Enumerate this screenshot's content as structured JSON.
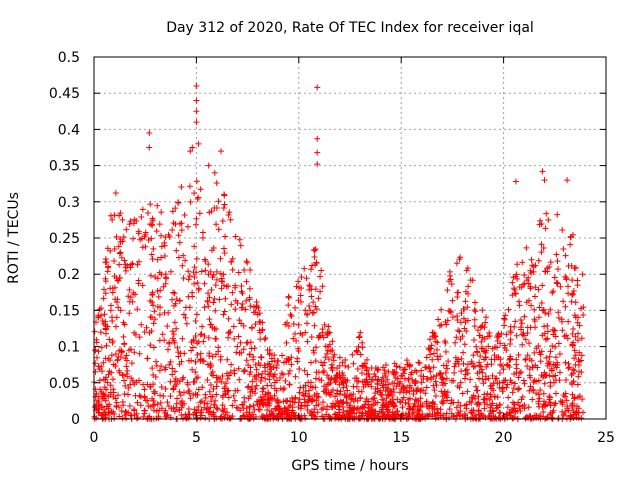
{
  "chart_data": {
    "type": "scatter",
    "title": "Day 312 of 2020, Rate Of TEC Index for receiver iqal",
    "xlabel": "GPS time / hours",
    "ylabel": "ROTI / TECUs",
    "xlim": [
      0,
      25
    ],
    "ylim": [
      0,
      0.5
    ],
    "grid": true,
    "x_ticks": [
      0,
      5,
      10,
      15,
      20,
      25
    ],
    "x_tick_labels": [
      "0",
      "5",
      "10",
      "15",
      "20",
      "25"
    ],
    "y_ticks": [
      0,
      0.05,
      0.1,
      0.15,
      0.2,
      0.25,
      0.3,
      0.35,
      0.4,
      0.45,
      0.5
    ],
    "y_tick_labels": [
      "0",
      "0.05",
      "0.1",
      "0.15",
      "0.2",
      "0.25",
      "0.3",
      "0.35",
      "0.4",
      "0.45",
      "0.5"
    ],
    "marker": "+",
    "series": [
      {
        "name": "ROTI",
        "color": "#ff0000",
        "envelope": [
          {
            "x": 0.0,
            "y": 0.12
          },
          {
            "x": 0.5,
            "y": 0.21
          },
          {
            "x": 1.0,
            "y": 0.32
          },
          {
            "x": 1.5,
            "y": 0.27
          },
          {
            "x": 2.0,
            "y": 0.3
          },
          {
            "x": 2.5,
            "y": 0.33
          },
          {
            "x": 3.0,
            "y": 0.31
          },
          {
            "x": 3.5,
            "y": 0.27
          },
          {
            "x": 4.0,
            "y": 0.31
          },
          {
            "x": 4.5,
            "y": 0.33
          },
          {
            "x": 5.0,
            "y": 0.34
          },
          {
            "x": 5.5,
            "y": 0.3
          },
          {
            "x": 6.0,
            "y": 0.33
          },
          {
            "x": 6.5,
            "y": 0.31
          },
          {
            "x": 7.0,
            "y": 0.25
          },
          {
            "x": 7.5,
            "y": 0.24
          },
          {
            "x": 8.0,
            "y": 0.16
          },
          {
            "x": 8.5,
            "y": 0.1
          },
          {
            "x": 9.0,
            "y": 0.09
          },
          {
            "x": 9.5,
            "y": 0.17
          },
          {
            "x": 10.0,
            "y": 0.2
          },
          {
            "x": 10.5,
            "y": 0.23
          },
          {
            "x": 11.0,
            "y": 0.25
          },
          {
            "x": 11.5,
            "y": 0.12
          },
          {
            "x": 12.0,
            "y": 0.09
          },
          {
            "x": 12.5,
            "y": 0.08
          },
          {
            "x": 13.0,
            "y": 0.12
          },
          {
            "x": 13.5,
            "y": 0.07
          },
          {
            "x": 14.0,
            "y": 0.08
          },
          {
            "x": 14.5,
            "y": 0.07
          },
          {
            "x": 15.0,
            "y": 0.09
          },
          {
            "x": 15.5,
            "y": 0.08
          },
          {
            "x": 16.0,
            "y": 0.08
          },
          {
            "x": 16.5,
            "y": 0.12
          },
          {
            "x": 17.0,
            "y": 0.17
          },
          {
            "x": 17.5,
            "y": 0.22
          },
          {
            "x": 18.0,
            "y": 0.24
          },
          {
            "x": 18.5,
            "y": 0.2
          },
          {
            "x": 19.0,
            "y": 0.16
          },
          {
            "x": 19.5,
            "y": 0.1
          },
          {
            "x": 20.0,
            "y": 0.14
          },
          {
            "x": 20.5,
            "y": 0.2
          },
          {
            "x": 21.0,
            "y": 0.25
          },
          {
            "x": 21.5,
            "y": 0.27
          },
          {
            "x": 22.0,
            "y": 0.29
          },
          {
            "x": 22.5,
            "y": 0.29
          },
          {
            "x": 23.0,
            "y": 0.27
          },
          {
            "x": 23.5,
            "y": 0.25
          },
          {
            "x": 23.9,
            "y": 0.2
          }
        ],
        "peaks": [
          {
            "x": 2.7,
            "y": 0.395
          },
          {
            "x": 2.7,
            "y": 0.375
          },
          {
            "x": 4.7,
            "y": 0.37
          },
          {
            "x": 4.8,
            "y": 0.375
          },
          {
            "x": 5.0,
            "y": 0.46
          },
          {
            "x": 5.0,
            "y": 0.44
          },
          {
            "x": 5.0,
            "y": 0.425
          },
          {
            "x": 5.0,
            "y": 0.41
          },
          {
            "x": 5.1,
            "y": 0.38
          },
          {
            "x": 6.2,
            "y": 0.37
          },
          {
            "x": 5.6,
            "y": 0.35
          },
          {
            "x": 5.9,
            "y": 0.34
          },
          {
            "x": 10.9,
            "y": 0.458
          },
          {
            "x": 10.9,
            "y": 0.387
          },
          {
            "x": 10.9,
            "y": 0.368
          },
          {
            "x": 10.9,
            "y": 0.352
          },
          {
            "x": 20.6,
            "y": 0.328
          },
          {
            "x": 21.9,
            "y": 0.342
          },
          {
            "x": 22.0,
            "y": 0.33
          },
          {
            "x": 23.1,
            "y": 0.33
          }
        ]
      }
    ]
  }
}
